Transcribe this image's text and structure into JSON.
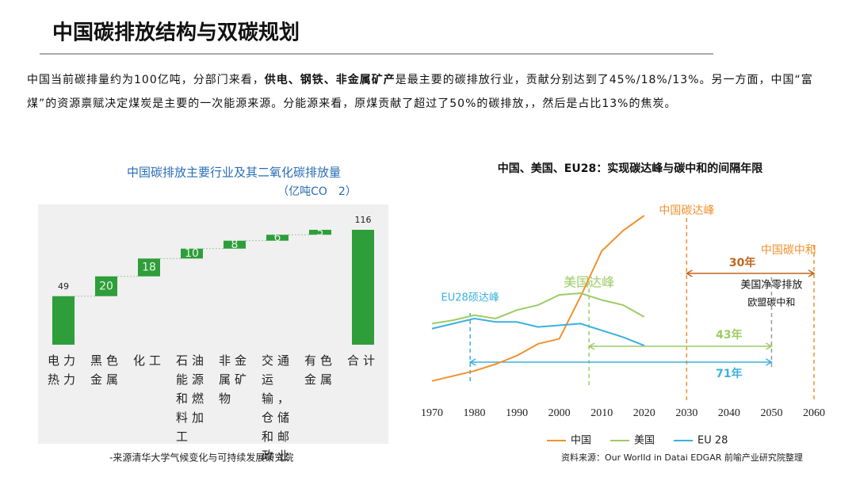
{
  "title": "中国碳排放结构与双碳规划",
  "intro": [
    "中国当前碳排量约为100亿吨，分部门来看，",
    "供电、钢铁、非金属矿产",
    "是最主要的碳排放行业，贡献分别达到了45%/18%/13%。另一方面，中国“富煤”的资源禀赋决定煤炭是主要的一次能源来源。分能源来看，原煤贡献了超过了50%的碳排放，，然后是占比13%的焦炭。"
  ],
  "chart_data": [
    {
      "type": "waterfall",
      "title": "中国碳排放主要行业及其二氧化碳排放量",
      "subtitle": "（亿吨CO　2）",
      "categories": [
        "电力热力",
        "黑色金属",
        "化工",
        "石油能源和燃料加工",
        "非金属矿物",
        "交通运输，仓储和邮政业",
        "有色金属",
        "合计"
      ],
      "values": [
        49,
        20,
        18,
        10,
        8,
        6,
        5,
        116
      ],
      "color": "#2e9e3a",
      "source": "-来源清华大学气候变化与可持续发展研究院"
    },
    {
      "type": "line",
      "title": "中国、美国、EU28：实现碳达峰与碳中和的间隔年限",
      "x": [
        1970,
        1975,
        1980,
        1985,
        1990,
        1995,
        2000,
        2005,
        2010,
        2015,
        2020
      ],
      "series": [
        {
          "name": "中国",
          "color": "#f0912f",
          "values": [
            0.9,
            1.2,
            1.5,
            1.9,
            2.4,
            3.1,
            3.4,
            5.9,
            8.6,
            9.8,
            10.7
          ]
        },
        {
          "name": "美国",
          "color": "#9ccc65",
          "values": [
            4.3,
            4.5,
            4.8,
            4.6,
            5.1,
            5.4,
            6.0,
            6.1,
            5.7,
            5.4,
            4.7
          ]
        },
        {
          "name": "EU 28",
          "color": "#3bb0e0",
          "values": [
            4.0,
            4.3,
            4.6,
            4.4,
            4.4,
            4.1,
            4.2,
            4.3,
            3.9,
            3.5,
            3.0
          ]
        }
      ],
      "xlim": [
        1970,
        2060
      ],
      "xticks": [
        1970,
        1980,
        1990,
        2000,
        2010,
        2020,
        2030,
        2040,
        2050,
        2060
      ],
      "vlines": [
        {
          "x": 2030,
          "label": "中国碳达峰",
          "color": "#f0912f"
        },
        {
          "x": 2060,
          "label": "中国碳中和",
          "color": "#f0912f"
        },
        {
          "x": 2007,
          "label": "美国达峰",
          "color": "#9ccc65"
        },
        {
          "x": 1979,
          "label": "EU28硕达峰",
          "color": "#3bb0e0"
        },
        {
          "x": 2050,
          "label": "美国净零排放",
          "color": "#999999"
        }
      ],
      "note": "欧盟碳中和",
      "spans": [
        {
          "from": 2030,
          "to": 2060,
          "label": "30年",
          "color": "#c0651d"
        },
        {
          "from": 2007,
          "to": 2050,
          "label": "43年",
          "color": "#9ccc65"
        },
        {
          "from": 1979,
          "to": 2050,
          "label": "71年",
          "color": "#3bb0e0"
        }
      ],
      "source": "资料来源：Our WorlId in Datai EDGAR 前喻产业研究院整理"
    }
  ]
}
